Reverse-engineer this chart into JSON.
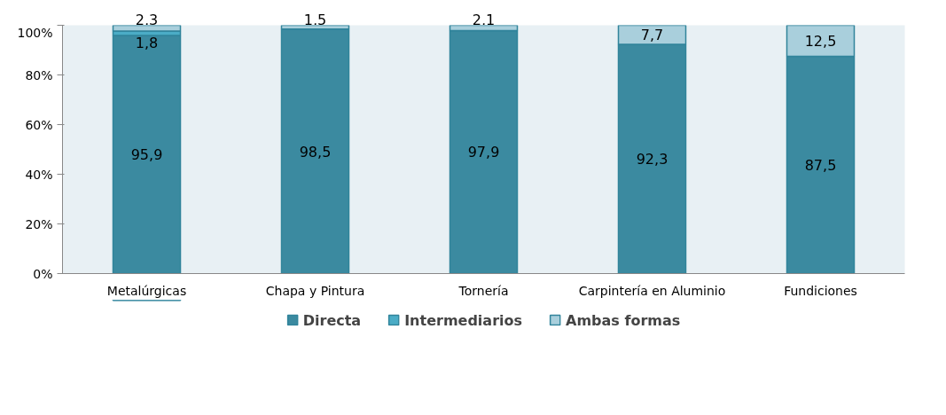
{
  "chart_data": {
    "type": "bar",
    "stacked": true,
    "categories": [
      "Metalúrgicas",
      "Chapa y Pintura",
      "Tornería",
      "Carpintería en Aluminio",
      "Fundiciones"
    ],
    "series": [
      {
        "name": "Directa",
        "color": "#3b8aa0",
        "values": [
          95.9,
          98.5,
          97.9,
          92.3,
          87.5
        ],
        "value_labels": [
          "95,9",
          "98,5",
          "97,9",
          "92,3",
          "87,5"
        ]
      },
      {
        "name": "Intermediarios",
        "color": "#4bacc6",
        "values": [
          1.8,
          0,
          0,
          0,
          0
        ],
        "value_labels": [
          "1,8",
          null,
          null,
          null,
          null
        ]
      },
      {
        "name": "Ambas formas",
        "color": "#a9cfdc",
        "values": [
          2.3,
          1.5,
          2.1,
          7.7,
          12.5
        ],
        "value_labels": [
          "2,3",
          "1,5",
          "2,1",
          "7,7",
          "12,5"
        ]
      }
    ],
    "ylim": [
      0,
      100
    ],
    "yticks": [
      {
        "value": 0,
        "label": "0%"
      },
      {
        "value": 20,
        "label": "20%"
      },
      {
        "value": 40,
        "label": "40%"
      },
      {
        "value": 60,
        "label": "60%"
      },
      {
        "value": 80,
        "label": "80%"
      },
      {
        "value": 100,
        "label": "100%"
      }
    ],
    "grid": false,
    "legend": "bottom"
  }
}
